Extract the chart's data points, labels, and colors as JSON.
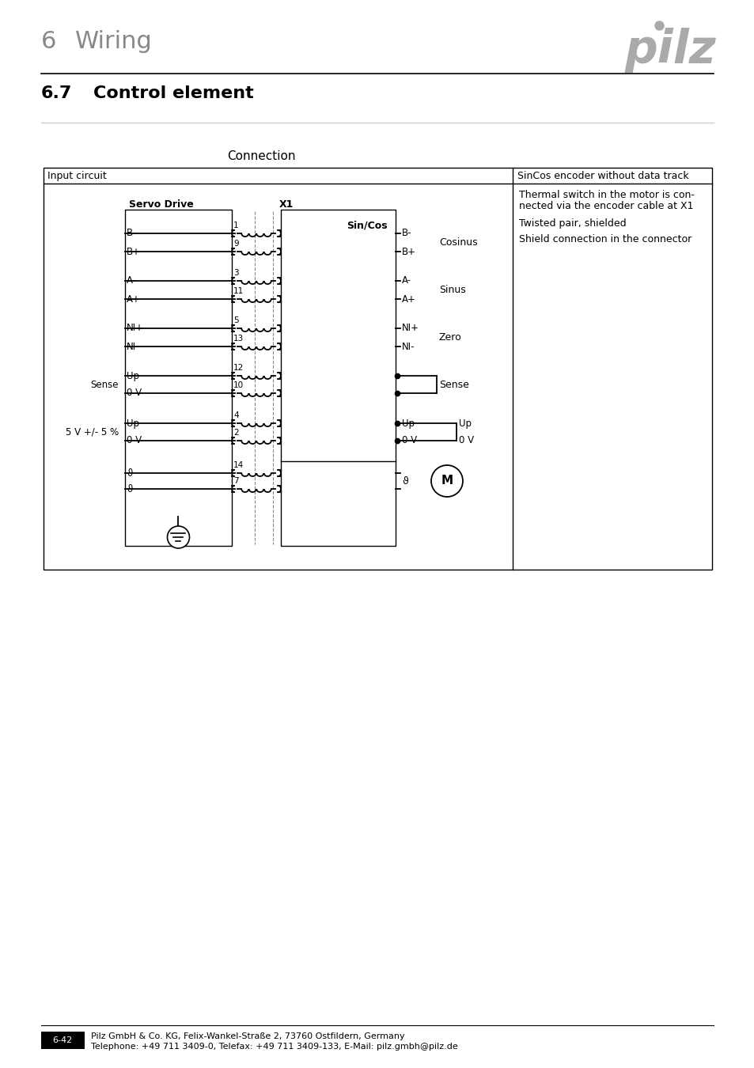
{
  "page_header_number": "6",
  "page_header_title": "Wiring",
  "section_number": "6.7",
  "section_title": "Control element",
  "connection_title": "Connection",
  "table_header_left": "Input circuit",
  "table_header_right": "SinCos encoder without data track",
  "servo_drive_label": "Servo Drive",
  "x1_label": "X1",
  "right_column_texts": [
    [
      "Thermal switch in the motor is con-",
      258
    ],
    [
      "nected via the encoder cable at X1",
      273
    ],
    [
      "Twisted pair, shielded",
      300
    ],
    [
      "Shield connection in the connector",
      327
    ]
  ],
  "sincos_label": "Sin/Cos",
  "cosinus_label": "Cosinus",
  "sinus_label": "Sinus",
  "zero_label": "Zero",
  "sense_label": "Sense",
  "fivev_label": "5 V +/- 5 %",
  "footer_page": "6-42",
  "footer_company": "Pilz GmbH & Co. KG, Felix-Wankel-Straße 2, 73760 Ostfildern, Germany",
  "footer_contact": "Telephone: +49 711 3409-0, Telefax: +49 711 3409-133, E-Mail: pilz.gmbh@pilz.de",
  "bg_color": "#ffffff",
  "line_color": "#000000",
  "header_gray": "#888888"
}
